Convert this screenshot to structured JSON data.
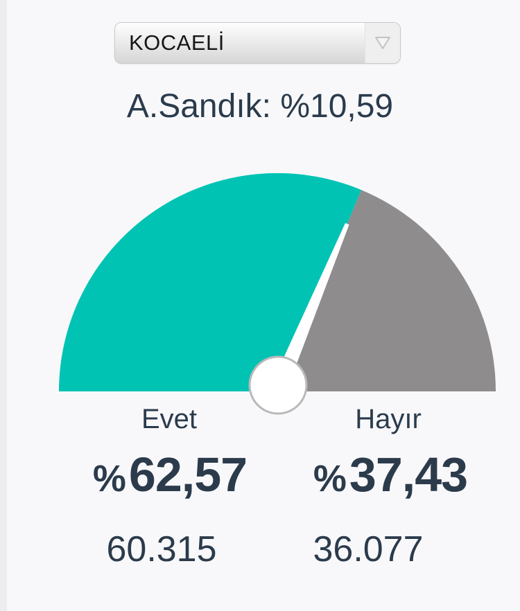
{
  "province_select": {
    "selected": "KOCAELİ"
  },
  "ballot_status": {
    "text": "A.Sandık: %10,59"
  },
  "results": [
    {
      "label": "Evet",
      "percent_sign": "%",
      "percent": "62,57",
      "count": "60.315"
    },
    {
      "label": "Hayır",
      "percent_sign": "%",
      "percent": "37,43",
      "count": "36.077"
    }
  ],
  "chart_data": {
    "type": "pie",
    "variant": "half-gauge",
    "categories": [
      "Evet",
      "Hayır"
    ],
    "values": [
      62.57,
      37.43
    ],
    "counts": [
      60315,
      36077
    ],
    "value_labels": [
      "%62,57",
      "%37,43"
    ],
    "count_labels": [
      "60.315",
      "36.077"
    ],
    "colors": [
      "#00c3b4",
      "#8e8c8d"
    ],
    "needle_color": "#ffffff",
    "hub_color": "#ffffff",
    "hub_border_color": "#b9b9b9",
    "start_angle_deg": 180,
    "end_angle_deg": 0,
    "legend_position": "below",
    "title": ""
  }
}
